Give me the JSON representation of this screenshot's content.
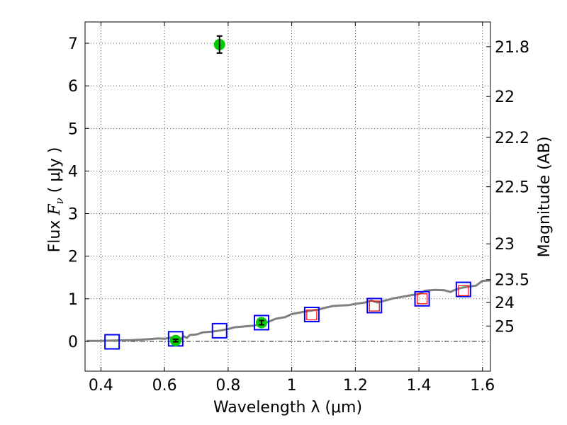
{
  "chart_data": {
    "type": "scatter",
    "xlabel": "Wavelength  λ (μm)",
    "ylabel_prefix": "Flux  ",
    "ylabel_symbol": "F",
    "ylabel_subscript": "ν",
    "ylabel_unit": "  ( μJy )",
    "y2label": "Magnitude (AB)",
    "xlim": [
      0.35,
      1.625
    ],
    "ylim": [
      -0.7,
      7.5
    ],
    "grid": true,
    "xticks": [
      0.4,
      0.6,
      0.8,
      1.0,
      1.2,
      1.4,
      1.6
    ],
    "xtick_labels": [
      "0.4",
      "0.6",
      "0.8",
      "1",
      "1.2",
      "1.4",
      "1.6"
    ],
    "yticks": [
      0,
      1,
      2,
      3,
      4,
      5,
      6,
      7
    ],
    "ytick_labels": [
      "0",
      "1",
      "2",
      "3",
      "4",
      "5",
      "6",
      "7"
    ],
    "magnitude_ticks": [
      {
        "label": "21.8",
        "flux": 6.92
      },
      {
        "label": "22",
        "flux": 5.75
      },
      {
        "label": "22.2",
        "flux": 4.79
      },
      {
        "label": "22.5",
        "flux": 3.63
      },
      {
        "label": "23",
        "flux": 2.29
      },
      {
        "label": "23.5",
        "flux": 1.45
      },
      {
        "label": "24",
        "flux": 0.91
      },
      {
        "label": "25",
        "flux": 0.36
      }
    ],
    "series": [
      {
        "kind": "line",
        "color": "#808080",
        "x": [
          0.355,
          0.4,
          0.44,
          0.5,
          0.55,
          0.58,
          0.6,
          0.62,
          0.63,
          0.64,
          0.65,
          0.66,
          0.67,
          0.68,
          0.7,
          0.72,
          0.75,
          0.78,
          0.8,
          0.82,
          0.85,
          0.88,
          0.9,
          0.92,
          0.95,
          0.98,
          1.0,
          1.02,
          1.05,
          1.08,
          1.1,
          1.13,
          1.15,
          1.18,
          1.2,
          1.23,
          1.25,
          1.27,
          1.3,
          1.32,
          1.35,
          1.38,
          1.4,
          1.42,
          1.45,
          1.48,
          1.5,
          1.51,
          1.53,
          1.55,
          1.58,
          1.6,
          1.625
        ],
        "y": [
          0.01,
          0.01,
          0.02,
          0.03,
          0.05,
          0.07,
          0.06,
          0.09,
          0.05,
          0.1,
          0.04,
          0.12,
          0.08,
          0.15,
          0.16,
          0.21,
          0.23,
          0.26,
          0.29,
          0.33,
          0.35,
          0.37,
          0.4,
          0.44,
          0.53,
          0.57,
          0.64,
          0.67,
          0.71,
          0.74,
          0.78,
          0.83,
          0.84,
          0.85,
          0.88,
          0.91,
          0.96,
          0.91,
          0.97,
          1.01,
          1.05,
          1.09,
          1.11,
          1.19,
          1.21,
          1.2,
          1.16,
          1.2,
          1.25,
          1.28,
          1.31,
          1.42,
          1.43
        ]
      },
      {
        "kind": "square",
        "color": "#0000ff",
        "x": [
          0.435,
          0.635,
          0.773,
          0.905,
          1.063,
          1.26,
          1.41,
          1.54
        ],
        "y": [
          -0.01,
          0.06,
          0.25,
          0.44,
          0.63,
          0.84,
          1.0,
          1.22
        ]
      },
      {
        "kind": "square",
        "color": "#ff0000",
        "x": [
          1.063,
          1.26,
          1.41,
          1.54
        ],
        "y": [
          0.62,
          0.83,
          1.0,
          1.19
        ]
      },
      {
        "kind": "point",
        "color": "#00cc00",
        "x": [
          0.635,
          0.773,
          0.905
        ],
        "y": [
          0.02,
          6.97,
          0.44
        ],
        "yerr": [
          0.03,
          0.2,
          0.05
        ]
      }
    ]
  }
}
